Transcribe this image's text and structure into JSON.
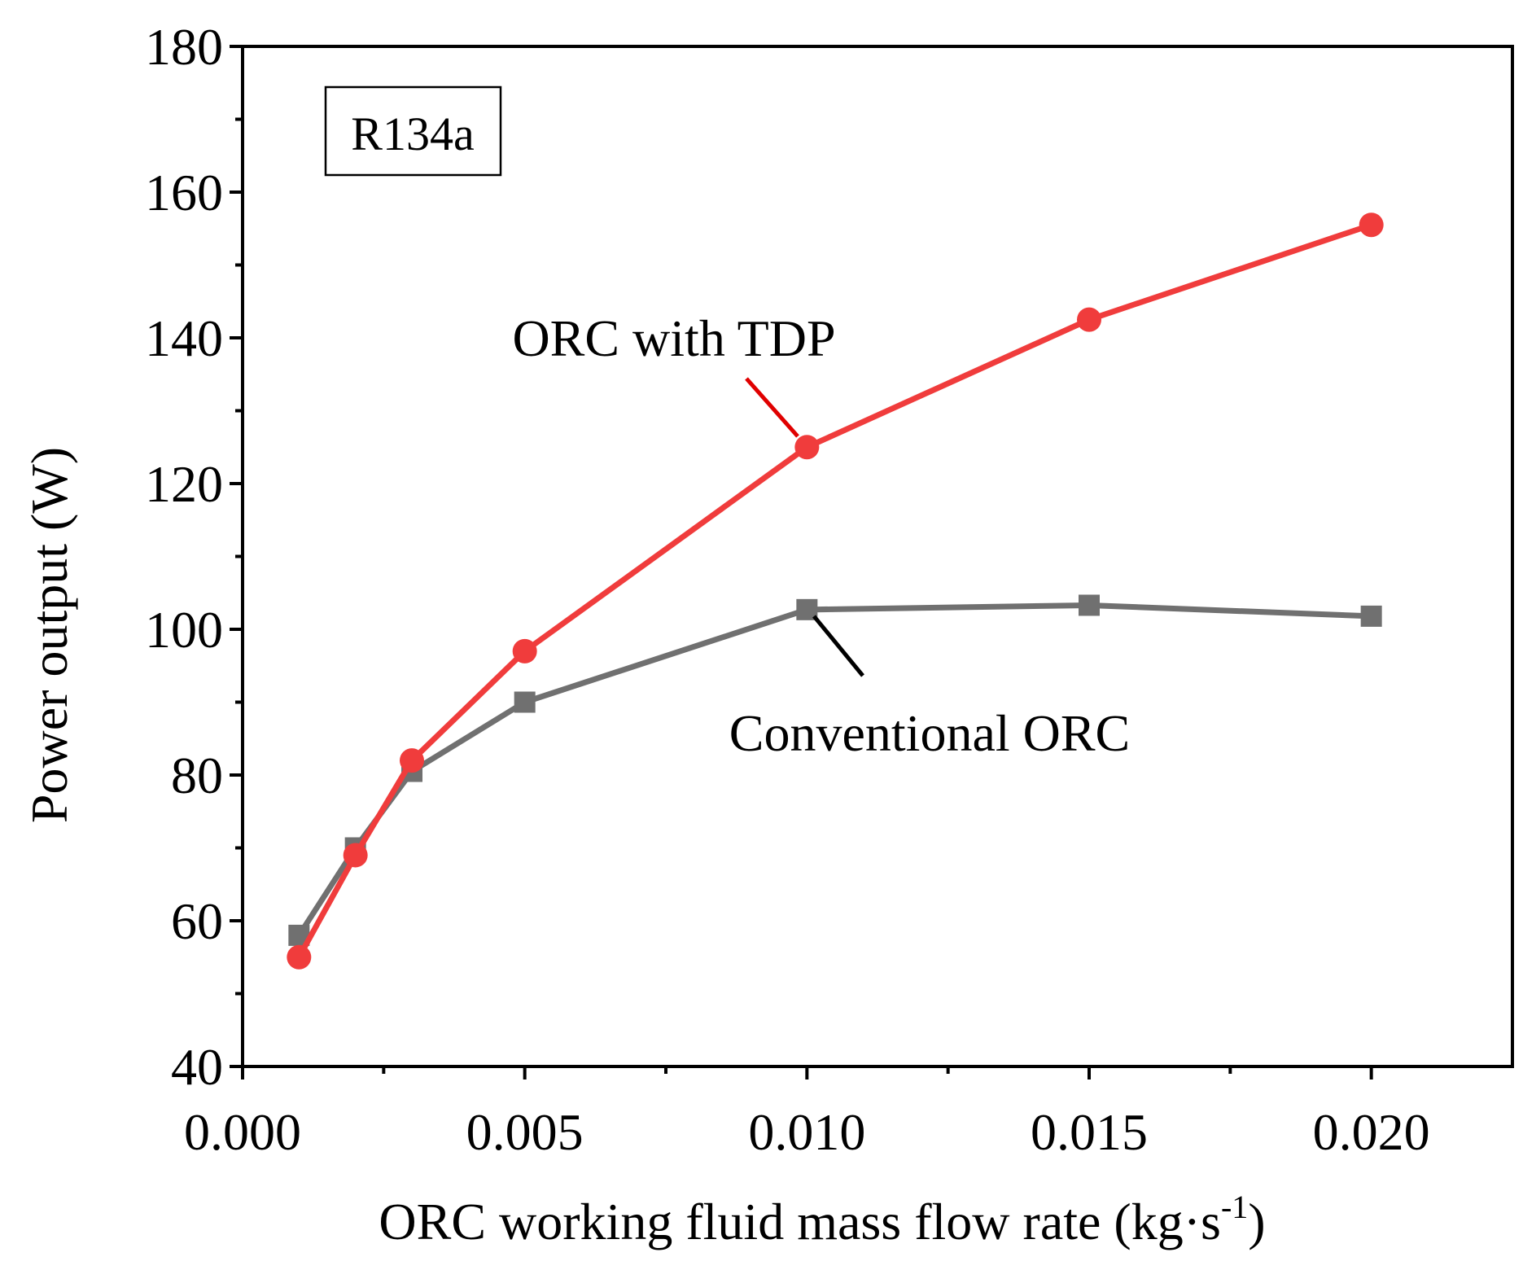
{
  "chart_data": {
    "type": "line",
    "title": "",
    "xlabel": "ORC working fluid mass flow rate (kg·s",
    "xlabel_superscript": "-1",
    "xlabel_suffix": ")",
    "ylabel": "Power output (W)",
    "xlim": [
      0.0,
      0.0225
    ],
    "ylim": [
      40,
      180
    ],
    "xticks": [
      0.0,
      0.005,
      0.01,
      0.015,
      0.02
    ],
    "xtick_labels": [
      "0.000",
      "0.005",
      "0.010",
      "0.015",
      "0.020"
    ],
    "yticks": [
      40,
      60,
      80,
      100,
      120,
      140,
      160,
      180
    ],
    "ytick_labels": [
      "40",
      "60",
      "80",
      "100",
      "120",
      "140",
      "160",
      "180"
    ],
    "x": [
      0.001,
      0.002,
      0.003,
      0.005,
      0.01,
      0.015,
      0.02
    ],
    "inset_label": "R134a",
    "series": [
      {
        "name": "Conventional ORC",
        "color": "#707070",
        "marker": "square",
        "values": [
          58,
          70,
          80.5,
          90,
          102.7,
          103.3,
          101.8
        ],
        "annotation": "Conventional ORC",
        "annotation_point_index": 4
      },
      {
        "name": "ORC with TDP",
        "color": "#f03c3c",
        "marker": "circle",
        "values": [
          55,
          69,
          82,
          97,
          125,
          142.5,
          155.5
        ],
        "annotation": "ORC with TDP",
        "annotation_point_index": 4
      }
    ],
    "grid": false,
    "legend": "none"
  }
}
